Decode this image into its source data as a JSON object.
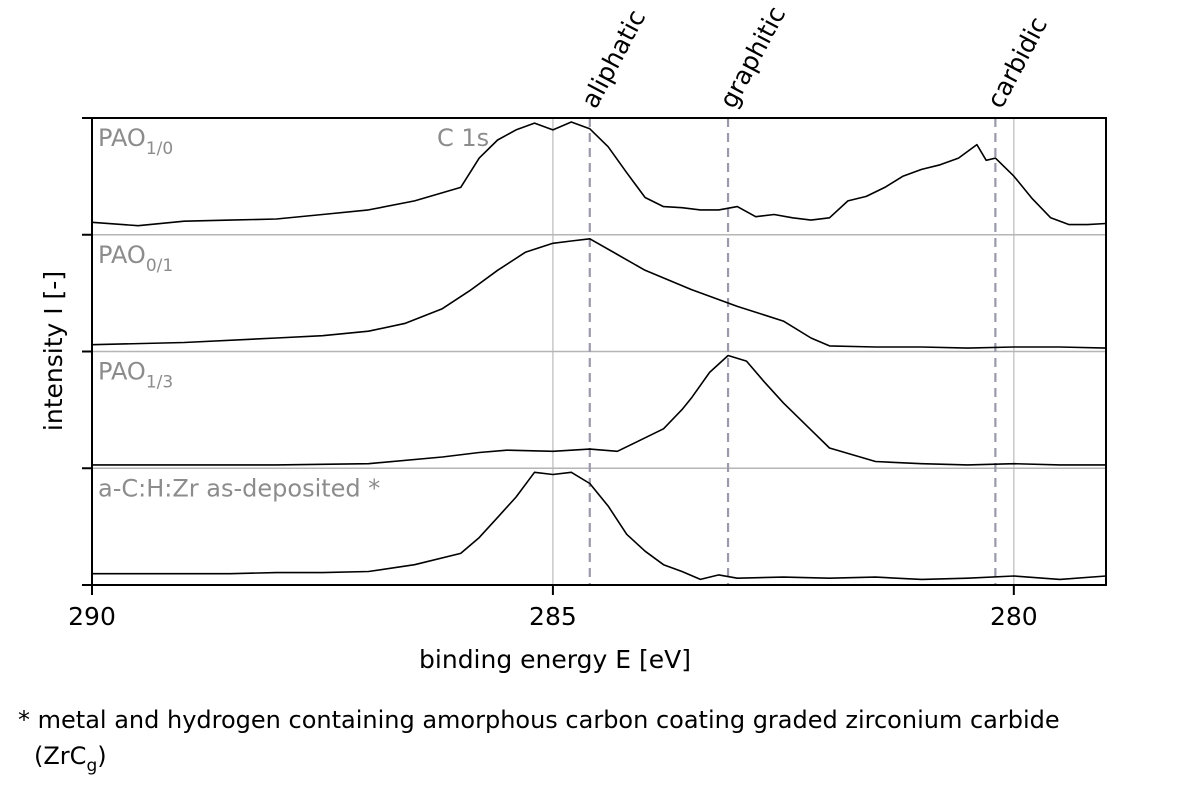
{
  "chart_data": {
    "type": "line",
    "xlabel": "binding energy E [eV]",
    "ylabel": "intensity I [-]",
    "xlim": [
      290,
      279
    ],
    "x_reversed": true,
    "xticks": [
      290,
      285,
      280
    ],
    "y_tick_labels": false,
    "grid_x": [
      285,
      280
    ],
    "annotation": "C 1s",
    "layout": "stacked",
    "reference_lines": [
      {
        "name": "aliphatic",
        "x": 284.6,
        "style": "dashed"
      },
      {
        "name": "graphitic",
        "x": 283.1,
        "style": "dashed"
      },
      {
        "name": "carbidic",
        "x": 280.2,
        "style": "dashed"
      }
    ],
    "series": [
      {
        "name": "PAO",
        "sub": "1/0",
        "x": [
          290.0,
          289.5,
          289.0,
          288.5,
          288.0,
          287.5,
          287.0,
          286.5,
          286.0,
          285.8,
          285.6,
          285.4,
          285.2,
          285.0,
          284.8,
          284.6,
          284.4,
          284.2,
          284.0,
          283.8,
          283.6,
          283.4,
          283.2,
          283.0,
          282.8,
          282.6,
          282.4,
          282.2,
          282.0,
          281.8,
          281.6,
          281.4,
          281.2,
          281.0,
          280.8,
          280.6,
          280.4,
          280.3,
          280.2,
          280.0,
          279.8,
          279.6,
          279.4,
          279.2,
          279.0
        ],
        "y": [
          0.11,
          0.08,
          0.12,
          0.13,
          0.14,
          0.18,
          0.22,
          0.3,
          0.42,
          0.68,
          0.84,
          0.93,
          0.99,
          0.93,
          1.0,
          0.94,
          0.78,
          0.55,
          0.33,
          0.25,
          0.24,
          0.22,
          0.22,
          0.25,
          0.16,
          0.18,
          0.15,
          0.13,
          0.15,
          0.3,
          0.34,
          0.42,
          0.52,
          0.58,
          0.62,
          0.68,
          0.8,
          0.66,
          0.68,
          0.52,
          0.32,
          0.15,
          0.09,
          0.09,
          0.1
        ]
      },
      {
        "name": "PAO",
        "sub": "0/1",
        "x": [
          290.0,
          289.0,
          288.0,
          287.5,
          287.0,
          286.6,
          286.2,
          285.9,
          285.6,
          285.3,
          285.0,
          284.8,
          284.6,
          284.3,
          284.0,
          283.5,
          283.0,
          282.5,
          282.2,
          282.0,
          281.5,
          281.0,
          280.5,
          280.0,
          279.5,
          279.0
        ],
        "y": [
          0.06,
          0.08,
          0.12,
          0.14,
          0.18,
          0.25,
          0.38,
          0.54,
          0.72,
          0.88,
          0.96,
          0.98,
          1.0,
          0.86,
          0.72,
          0.55,
          0.4,
          0.27,
          0.12,
          0.05,
          0.04,
          0.04,
          0.03,
          0.04,
          0.04,
          0.03
        ]
      },
      {
        "name": "PAO",
        "sub": "1/3",
        "x": [
          290.0,
          289.0,
          288.0,
          287.0,
          286.2,
          285.8,
          285.5,
          285.0,
          284.6,
          284.3,
          284.0,
          283.8,
          283.6,
          283.5,
          283.3,
          283.1,
          282.9,
          282.7,
          282.5,
          282.2,
          282.0,
          281.5,
          281.0,
          280.5,
          280.0,
          279.5,
          279.0
        ],
        "y": [
          0.03,
          0.03,
          0.03,
          0.04,
          0.1,
          0.14,
          0.16,
          0.15,
          0.17,
          0.15,
          0.27,
          0.35,
          0.52,
          0.62,
          0.85,
          1.0,
          0.95,
          0.76,
          0.58,
          0.34,
          0.18,
          0.06,
          0.04,
          0.03,
          0.04,
          0.03,
          0.03
        ]
      },
      {
        "name": "a-C:H:Zr as-deposited *",
        "x": [
          290.0,
          289.5,
          289.0,
          288.5,
          288.0,
          287.5,
          287.0,
          286.5,
          286.0,
          285.8,
          285.6,
          285.4,
          285.2,
          285.0,
          284.8,
          284.6,
          284.4,
          284.2,
          284.0,
          283.8,
          283.6,
          283.4,
          283.2,
          283.0,
          282.5,
          282.0,
          281.5,
          281.0,
          280.5,
          280.0,
          279.5,
          279.0
        ],
        "y": [
          0.1,
          0.1,
          0.1,
          0.1,
          0.11,
          0.11,
          0.12,
          0.18,
          0.28,
          0.42,
          0.6,
          0.78,
          1.0,
          0.98,
          1.0,
          0.9,
          0.7,
          0.45,
          0.3,
          0.18,
          0.12,
          0.05,
          0.09,
          0.06,
          0.07,
          0.06,
          0.07,
          0.05,
          0.06,
          0.08,
          0.05,
          0.08
        ]
      }
    ]
  },
  "footnote": {
    "marker": "*",
    "text": "metal and hydrogen containing amorphous carbon coating graded zirconium carbide",
    "abbr_main": "(ZrC",
    "abbr_sub": "g",
    "abbr_close": ")"
  },
  "colors": {
    "spectrum": "#000000",
    "panel_label": "#8c8c8c",
    "reference_line": "#9a9aaa",
    "grid": "#c8c8c8"
  }
}
